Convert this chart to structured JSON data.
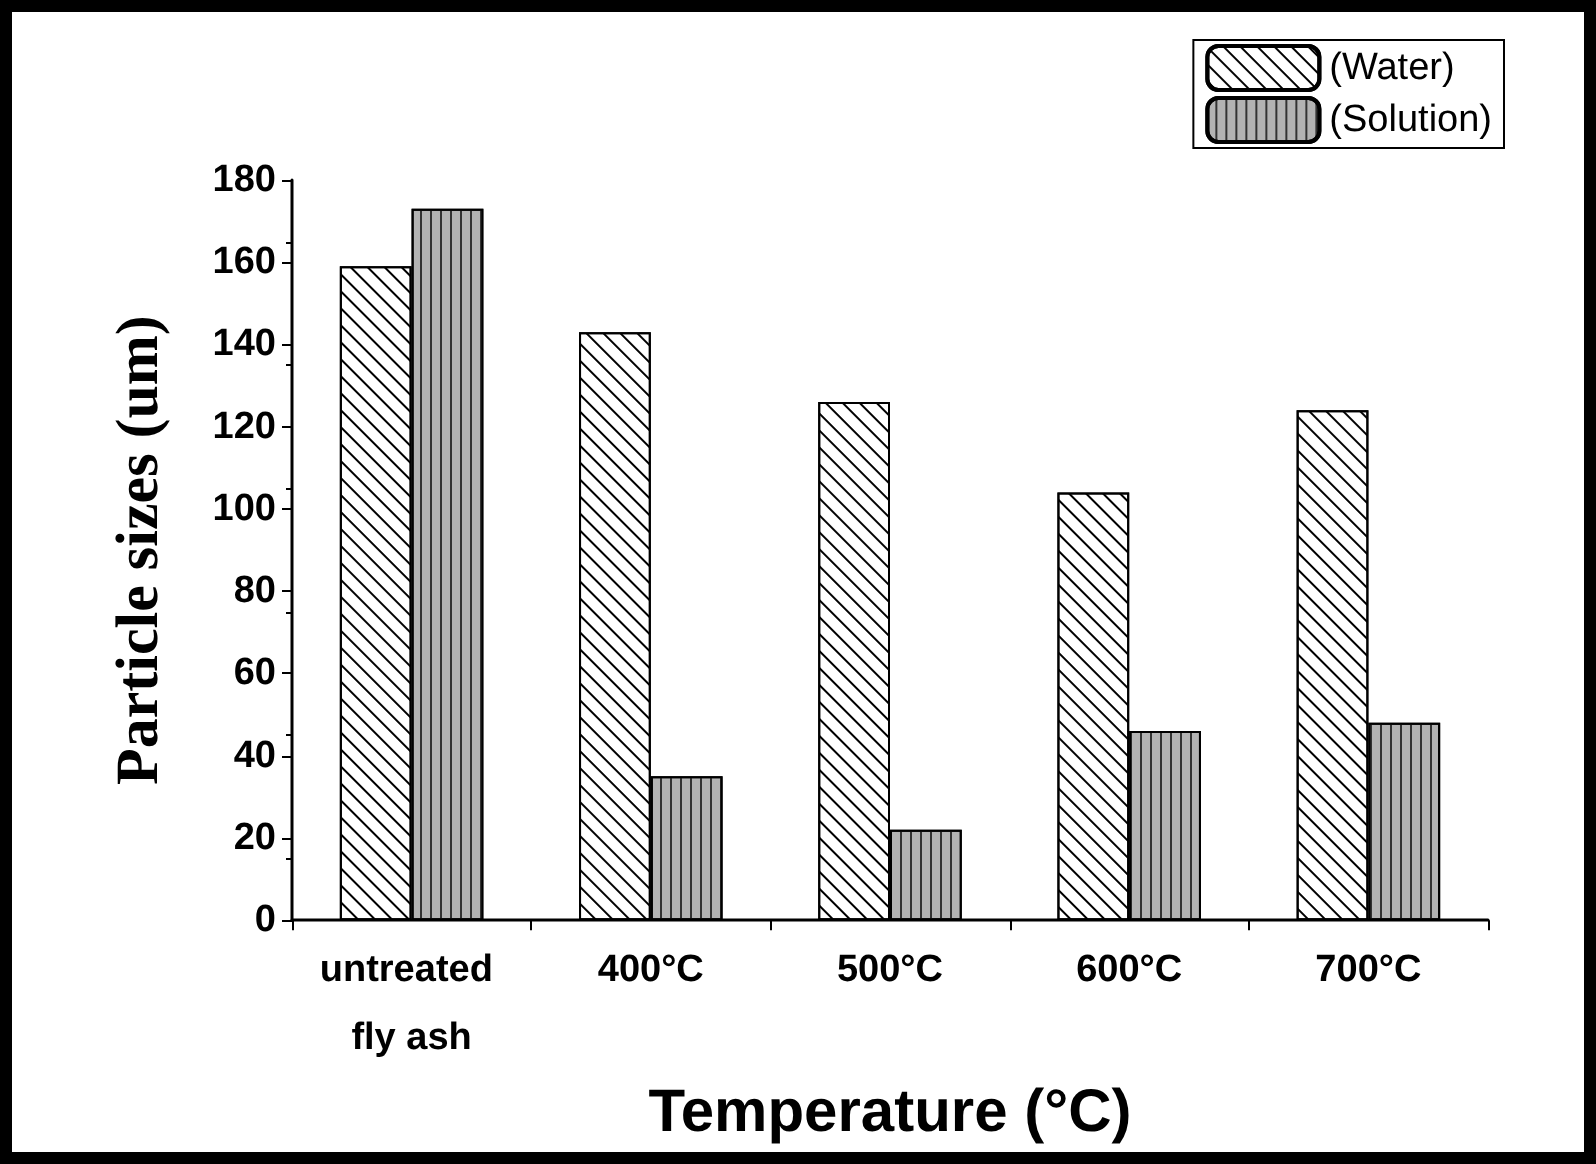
{
  "chart_data": {
    "type": "bar",
    "xlabel": "Temperature (°C)",
    "ylabel": "Particle sizes (um)",
    "categories": [
      "untreated fly ash",
      "400°C",
      "500°C",
      "600°C",
      "700°C"
    ],
    "series": [
      {
        "name": "(Water)",
        "color": "#ffffff",
        "values": [
          159,
          143,
          126,
          104,
          124
        ]
      },
      {
        "name": "(Solution)",
        "color": "#b3b3b3",
        "values": [
          173,
          35,
          22,
          46,
          48
        ]
      }
    ],
    "ylim": [
      0,
      180
    ],
    "yticks": [
      0,
      20,
      40,
      60,
      80,
      100,
      120,
      140,
      160,
      180
    ],
    "grid": false,
    "legend": "top right"
  }
}
